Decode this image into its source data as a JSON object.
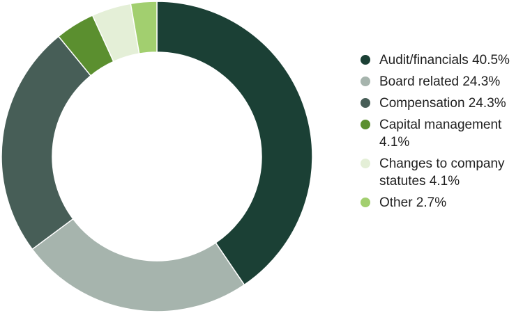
{
  "chart_data": {
    "type": "pie",
    "donut": true,
    "legend_position": "right",
    "slices": [
      {
        "label": "Audit/financials 40.5%",
        "value": 40.5,
        "color": "#1b4035"
      },
      {
        "label": "Board related 24.3%",
        "value": 24.3,
        "color": "#a6b4ad"
      },
      {
        "label": "Compensation 24.3%",
        "value": 24.3,
        "color": "#475e57"
      },
      {
        "label": "Capital management 4.1%",
        "value": 4.1,
        "color": "#5b8f2f"
      },
      {
        "label": "Changes to company statutes 4.1%",
        "value": 4.1,
        "color": "#e4efd7"
      },
      {
        "label": "Other 2.7%",
        "value": 2.7,
        "color": "#a2cf6f"
      }
    ]
  }
}
